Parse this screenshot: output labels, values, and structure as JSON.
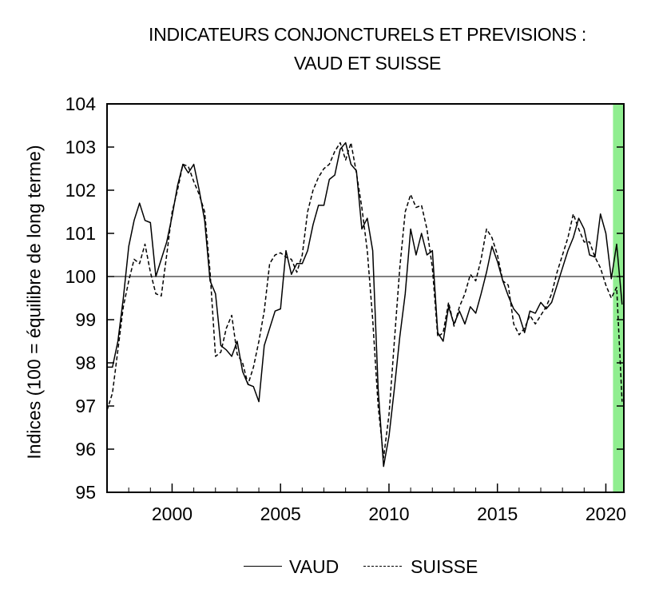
{
  "chart_data": {
    "type": "line",
    "title": "INDICATEURS CONJONCTURELS ET PREVISIONS :",
    "subtitle": "VAUD ET SUISSE",
    "ylabel": "Indices (100 = équilibre de long terme)",
    "xlabel": "",
    "xlim": [
      1997.0,
      2020.83
    ],
    "ylim": [
      95,
      104
    ],
    "x_ticks": [
      2000,
      2005,
      2010,
      2015,
      2020
    ],
    "y_ticks": [
      95,
      96,
      97,
      98,
      99,
      100,
      101,
      102,
      103,
      104
    ],
    "reference_line": 100,
    "forecast_band": {
      "from": 2020.33,
      "to": 2020.83,
      "color": "#90ee90"
    },
    "legend": {
      "position": "bottom",
      "entries": [
        "VAUD",
        "SUISSE"
      ]
    },
    "series": [
      {
        "name": "VAUD",
        "style": "solid",
        "color": "#000000",
        "points": [
          [
            1997.0,
            97.9
          ],
          [
            1997.25,
            97.9
          ],
          [
            1997.5,
            98.5
          ],
          [
            1997.75,
            99.5
          ],
          [
            1998.0,
            100.7
          ],
          [
            1998.25,
            101.3
          ],
          [
            1998.5,
            101.7
          ],
          [
            1998.75,
            101.3
          ],
          [
            1999.0,
            101.25
          ],
          [
            1999.25,
            100.0
          ],
          [
            1999.5,
            100.4
          ],
          [
            1999.75,
            100.8
          ],
          [
            2000.0,
            101.4
          ],
          [
            2000.25,
            102.1
          ],
          [
            2000.5,
            102.6
          ],
          [
            2000.75,
            102.4
          ],
          [
            2001.0,
            102.6
          ],
          [
            2001.25,
            102.0
          ],
          [
            2001.5,
            101.3
          ],
          [
            2001.75,
            99.9
          ],
          [
            2002.0,
            99.6
          ],
          [
            2002.25,
            98.4
          ],
          [
            2002.5,
            98.3
          ],
          [
            2002.75,
            98.15
          ],
          [
            2003.0,
            98.5
          ],
          [
            2003.25,
            97.8
          ],
          [
            2003.5,
            97.5
          ],
          [
            2003.75,
            97.45
          ],
          [
            2004.0,
            97.1
          ],
          [
            2004.25,
            98.4
          ],
          [
            2004.5,
            98.8
          ],
          [
            2004.75,
            99.2
          ],
          [
            2005.0,
            99.25
          ],
          [
            2005.25,
            100.6
          ],
          [
            2005.5,
            100.05
          ],
          [
            2005.75,
            100.3
          ],
          [
            2006.0,
            100.3
          ],
          [
            2006.25,
            100.6
          ],
          [
            2006.5,
            101.2
          ],
          [
            2006.75,
            101.65
          ],
          [
            2007.0,
            101.65
          ],
          [
            2007.25,
            102.25
          ],
          [
            2007.5,
            102.35
          ],
          [
            2007.75,
            102.95
          ],
          [
            2008.0,
            103.1
          ],
          [
            2008.25,
            102.6
          ],
          [
            2008.5,
            102.45
          ],
          [
            2008.75,
            101.1
          ],
          [
            2009.0,
            101.35
          ],
          [
            2009.25,
            100.6
          ],
          [
            2009.5,
            97.4
          ],
          [
            2009.75,
            95.6
          ],
          [
            2010.0,
            96.3
          ],
          [
            2010.25,
            97.4
          ],
          [
            2010.5,
            98.6
          ],
          [
            2010.75,
            99.6
          ],
          [
            2011.0,
            101.1
          ],
          [
            2011.25,
            100.5
          ],
          [
            2011.5,
            101.0
          ],
          [
            2011.75,
            100.5
          ],
          [
            2012.0,
            100.6
          ],
          [
            2012.25,
            98.7
          ],
          [
            2012.5,
            98.5
          ],
          [
            2012.75,
            99.3
          ],
          [
            2013.0,
            98.9
          ],
          [
            2013.25,
            99.2
          ],
          [
            2013.5,
            98.9
          ],
          [
            2013.75,
            99.3
          ],
          [
            2014.0,
            99.15
          ],
          [
            2014.25,
            99.6
          ],
          [
            2014.5,
            100.1
          ],
          [
            2014.75,
            100.7
          ],
          [
            2015.0,
            100.35
          ],
          [
            2015.25,
            99.9
          ],
          [
            2015.5,
            99.55
          ],
          [
            2015.75,
            99.25
          ],
          [
            2016.0,
            99.1
          ],
          [
            2016.25,
            98.7
          ],
          [
            2016.5,
            99.2
          ],
          [
            2016.75,
            99.15
          ],
          [
            2017.0,
            99.4
          ],
          [
            2017.25,
            99.25
          ],
          [
            2017.5,
            99.4
          ],
          [
            2017.75,
            99.8
          ],
          [
            2018.0,
            100.2
          ],
          [
            2018.25,
            100.6
          ],
          [
            2018.5,
            100.9
          ],
          [
            2018.75,
            101.35
          ],
          [
            2019.0,
            101.1
          ],
          [
            2019.25,
            100.5
          ],
          [
            2019.5,
            100.45
          ],
          [
            2019.75,
            101.45
          ],
          [
            2020.0,
            101.0
          ],
          [
            2020.25,
            99.95
          ],
          [
            2020.5,
            100.75
          ],
          [
            2020.75,
            99.35
          ]
        ]
      },
      {
        "name": "SUISSE",
        "style": "dashed",
        "color": "#000000",
        "points": [
          [
            1997.0,
            96.9
          ],
          [
            1997.25,
            97.3
          ],
          [
            1997.5,
            98.3
          ],
          [
            1997.75,
            99.3
          ],
          [
            1998.0,
            99.9
          ],
          [
            1998.25,
            100.4
          ],
          [
            1998.5,
            100.3
          ],
          [
            1998.75,
            100.75
          ],
          [
            1999.0,
            100.1
          ],
          [
            1999.25,
            99.6
          ],
          [
            1999.5,
            99.55
          ],
          [
            1999.75,
            100.5
          ],
          [
            2000.0,
            101.5
          ],
          [
            2000.25,
            102.0
          ],
          [
            2000.5,
            102.6
          ],
          [
            2000.75,
            102.55
          ],
          [
            2001.0,
            102.2
          ],
          [
            2001.25,
            101.9
          ],
          [
            2001.5,
            101.5
          ],
          [
            2001.75,
            100.1
          ],
          [
            2002.0,
            98.15
          ],
          [
            2002.25,
            98.25
          ],
          [
            2002.5,
            98.8
          ],
          [
            2002.75,
            99.1
          ],
          [
            2003.0,
            98.2
          ],
          [
            2003.25,
            98.0
          ],
          [
            2003.5,
            97.5
          ],
          [
            2003.75,
            97.9
          ],
          [
            2004.0,
            98.5
          ],
          [
            2004.25,
            99.2
          ],
          [
            2004.5,
            100.3
          ],
          [
            2004.75,
            100.5
          ],
          [
            2005.0,
            100.55
          ],
          [
            2005.25,
            100.45
          ],
          [
            2005.5,
            100.4
          ],
          [
            2005.75,
            100.1
          ],
          [
            2006.0,
            100.5
          ],
          [
            2006.25,
            101.5
          ],
          [
            2006.5,
            102.0
          ],
          [
            2006.75,
            102.3
          ],
          [
            2007.0,
            102.5
          ],
          [
            2007.25,
            102.6
          ],
          [
            2007.5,
            102.9
          ],
          [
            2007.75,
            103.1
          ],
          [
            2008.0,
            102.7
          ],
          [
            2008.25,
            103.1
          ],
          [
            2008.5,
            102.4
          ],
          [
            2008.75,
            101.6
          ],
          [
            2009.0,
            100.6
          ],
          [
            2009.25,
            99.0
          ],
          [
            2009.5,
            97.0
          ],
          [
            2009.75,
            95.8
          ],
          [
            2010.0,
            96.8
          ],
          [
            2010.25,
            98.5
          ],
          [
            2010.5,
            100.2
          ],
          [
            2010.75,
            101.5
          ],
          [
            2011.0,
            101.9
          ],
          [
            2011.25,
            101.6
          ],
          [
            2011.5,
            101.65
          ],
          [
            2011.75,
            101.1
          ],
          [
            2012.0,
            100.2
          ],
          [
            2012.25,
            98.6
          ],
          [
            2012.5,
            98.7
          ],
          [
            2012.75,
            99.4
          ],
          [
            2013.0,
            98.85
          ],
          [
            2013.25,
            99.3
          ],
          [
            2013.5,
            99.6
          ],
          [
            2013.75,
            100.05
          ],
          [
            2014.0,
            99.9
          ],
          [
            2014.25,
            100.4
          ],
          [
            2014.5,
            101.1
          ],
          [
            2014.75,
            100.9
          ],
          [
            2015.0,
            100.5
          ],
          [
            2015.25,
            99.9
          ],
          [
            2015.5,
            99.8
          ],
          [
            2015.75,
            98.9
          ],
          [
            2016.0,
            98.65
          ],
          [
            2016.25,
            98.8
          ],
          [
            2016.5,
            99.1
          ],
          [
            2016.75,
            98.9
          ],
          [
            2017.0,
            99.1
          ],
          [
            2017.25,
            99.3
          ],
          [
            2017.5,
            99.6
          ],
          [
            2017.75,
            100.1
          ],
          [
            2018.0,
            100.5
          ],
          [
            2018.25,
            100.9
          ],
          [
            2018.5,
            101.45
          ],
          [
            2018.75,
            101.1
          ],
          [
            2019.0,
            100.8
          ],
          [
            2019.25,
            100.8
          ],
          [
            2019.5,
            100.45
          ],
          [
            2019.75,
            100.2
          ],
          [
            2020.0,
            99.8
          ],
          [
            2020.25,
            99.5
          ],
          [
            2020.5,
            99.75
          ],
          [
            2020.75,
            97.1
          ]
        ]
      }
    ]
  }
}
